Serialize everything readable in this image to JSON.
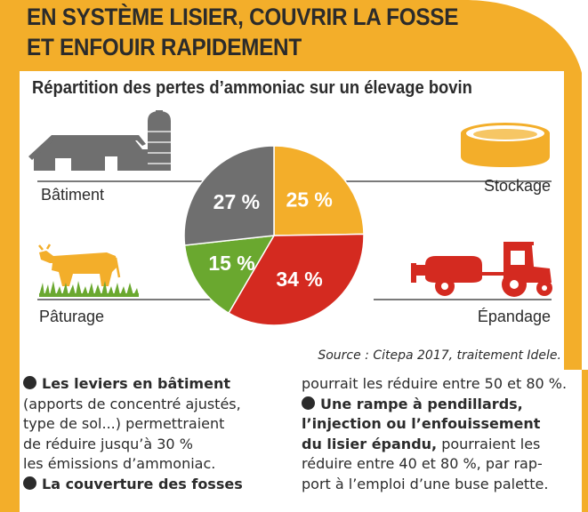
{
  "header": {
    "line1": "EN SYSTÈME LISIER, COUVRIR LA FOSSE",
    "line2": "ET ENFOUIR RAPIDEMENT"
  },
  "chart_data": {
    "type": "pie",
    "title": "Répartition des pertes d’ammoniac sur un élevage bovin",
    "categories": [
      "Stockage",
      "Épandage",
      "Pâturage",
      "Bâtiment"
    ],
    "values": [
      25,
      34,
      15,
      27
    ],
    "labels": [
      "25 %",
      "34 %",
      "15 %",
      "27 %"
    ],
    "colors": [
      "#f3ae2a",
      "#d42a20",
      "#6aa82f",
      "#6f6f6f"
    ],
    "source": "Source : Citepa 2017, traitement Idele."
  },
  "icons": [
    "barn-silo-icon",
    "cow-icon",
    "storage-tank-icon",
    "tractor-spreader-icon"
  ],
  "colors": {
    "accent": "#f3ae2a",
    "text": "#2b2b2b"
  },
  "text": {
    "left": {
      "item1_title": "Les leviers en bâtiment",
      "item1_lines": [
        "(apports de concentré ajustés,",
        "type de sol...) permettraient",
        "de réduire jusqu’à 30 %",
        "les émissions d’ammoniac."
      ],
      "item2_title": "La couverture des fosses"
    },
    "right": {
      "item2_cont": "pourrait les réduire entre 50 et 80 %.",
      "item3_title_lines": [
        "Une rampe à pendillards,",
        "l’injection ou l’enfouissement"
      ],
      "item3_title_last": "du lisier épandu,",
      "item3_tail_first": " pourraient les",
      "item3_tail_lines": [
        "réduire entre 40 et 80 %, par rap-",
        "port à l’emploi d’une buse palette."
      ]
    }
  }
}
